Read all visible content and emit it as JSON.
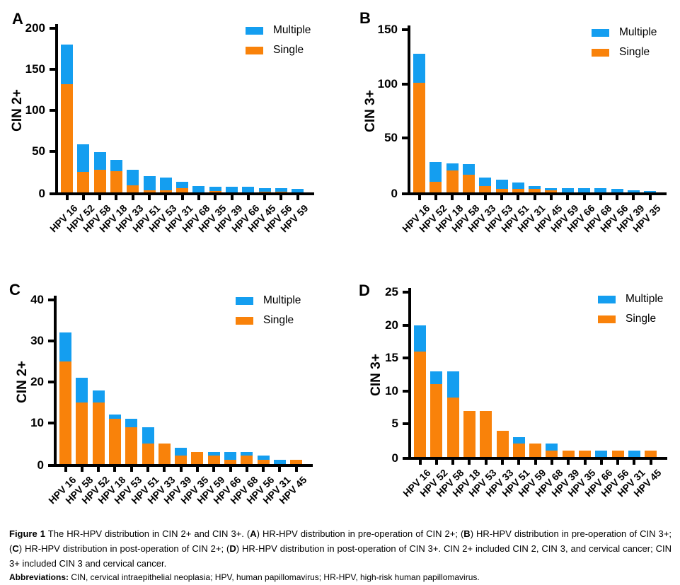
{
  "colors": {
    "multiple": "#149EF0",
    "single": "#F9820A",
    "axis": "#000000",
    "background": "#FFFFFF"
  },
  "legend": {
    "multiple": "Multiple",
    "single": "Single"
  },
  "chart_data": [
    {
      "type": "bar",
      "stacked": true,
      "panel": "A",
      "ylabel": "CIN 2+",
      "ylim": [
        0,
        200
      ],
      "yticks": [
        0,
        50,
        100,
        150,
        200
      ],
      "grid": false,
      "legend_position": "top-right",
      "legend_entries": [
        "Multiple",
        "Single"
      ],
      "categories": [
        "HPV 16",
        "HPV 52",
        "HPV 58",
        "HPV 18",
        "HPV 33",
        "HPV 51",
        "HPV 53",
        "HPV 31",
        "HPV 68",
        "HPV 35",
        "HPV 39",
        "HPV 66",
        "HPV 45",
        "HPV 56",
        "HPV 59"
      ],
      "series": [
        {
          "name": "Single",
          "values": [
            132,
            25,
            28,
            26,
            9,
            3,
            3,
            5,
            0,
            2,
            0,
            0,
            1,
            1,
            0
          ]
        },
        {
          "name": "Multiple",
          "values": [
            48,
            34,
            21,
            14,
            19,
            17,
            15,
            8,
            8,
            5,
            7,
            7,
            4,
            4,
            4
          ]
        }
      ],
      "totals": [
        180,
        59,
        49,
        40,
        28,
        20,
        18,
        13,
        8,
        7,
        7,
        7,
        5,
        5,
        4
      ]
    },
    {
      "type": "bar",
      "stacked": true,
      "panel": "B",
      "ylabel": "CIN 3+",
      "ylim": [
        0,
        150
      ],
      "yticks": [
        0,
        50,
        100,
        150
      ],
      "grid": false,
      "legend_position": "top-right",
      "legend_entries": [
        "Multiple",
        "Single"
      ],
      "categories": [
        "HPV 16",
        "HPV 52",
        "HPV 18",
        "HPV 58",
        "HPV 33",
        "HPV 53",
        "HPV 51",
        "HPV 31",
        "HPV 45",
        "HPV 59",
        "HPV 66",
        "HPV 68",
        "HPV 56",
        "HPV 39",
        "HPV 35"
      ],
      "series": [
        {
          "name": "Single",
          "values": [
            101,
            10,
            20,
            16,
            6,
            3,
            3,
            3,
            2,
            0,
            0,
            0,
            0,
            0,
            0
          ]
        },
        {
          "name": "Multiple",
          "values": [
            27,
            18,
            7,
            10,
            8,
            9,
            6,
            3,
            2,
            4,
            4,
            4,
            3,
            2,
            1
          ]
        }
      ],
      "totals": [
        128,
        28,
        27,
        26,
        14,
        12,
        9,
        6,
        4,
        4,
        4,
        4,
        3,
        2,
        1
      ]
    },
    {
      "type": "bar",
      "stacked": true,
      "panel": "C",
      "ylabel": "CIN 2+",
      "ylim": [
        0,
        40
      ],
      "yticks": [
        0,
        10,
        20,
        30,
        40
      ],
      "grid": false,
      "legend_position": "top-right",
      "legend_entries": [
        "Multiple",
        "Single"
      ],
      "categories": [
        "HPV 16",
        "HPV 58",
        "HPV 52",
        "HPV 18",
        "HPV 53",
        "HPV 51",
        "HPV 33",
        "HPV 39",
        "HPV 35",
        "HPV 59",
        "HPV 66",
        "HPV 68",
        "HPV 56",
        "HPV 31",
        "HPV 45"
      ],
      "series": [
        {
          "name": "Single",
          "values": [
            25,
            15,
            15,
            11,
            9,
            5,
            5,
            2,
            3,
            2,
            1,
            2,
            1,
            0,
            1
          ]
        },
        {
          "name": "Multiple",
          "values": [
            7,
            6,
            3,
            1,
            2,
            4,
            0,
            2,
            0,
            1,
            2,
            1,
            1,
            1,
            0
          ]
        }
      ],
      "totals": [
        32,
        21,
        18,
        12,
        11,
        9,
        5,
        4,
        3,
        3,
        3,
        3,
        2,
        1,
        1
      ]
    },
    {
      "type": "bar",
      "stacked": true,
      "panel": "D",
      "ylabel": "CIN 3+",
      "ylim": [
        0,
        25
      ],
      "yticks": [
        0,
        5,
        10,
        15,
        20,
        25
      ],
      "grid": false,
      "legend_position": "top-right",
      "legend_entries": [
        "Multiple",
        "Single"
      ],
      "categories": [
        "HPV 16",
        "HPV 52",
        "HPV 58",
        "HPV 18",
        "HPV 53",
        "HPV 33",
        "HPV 51",
        "HPV 59",
        "HPV 68",
        "HPV 39",
        "HPV 35",
        "HPV 66",
        "HPV 56",
        "HPV 31",
        "HPV 45"
      ],
      "series": [
        {
          "name": "Single",
          "values": [
            16,
            11,
            9,
            7,
            7,
            4,
            2,
            2,
            1,
            1,
            1,
            0,
            1,
            0,
            1
          ]
        },
        {
          "name": "Multiple",
          "values": [
            4,
            2,
            4,
            0,
            0,
            0,
            1,
            0,
            1,
            0,
            0,
            1,
            0,
            1,
            0
          ]
        }
      ],
      "totals": [
        20,
        13,
        13,
        7,
        7,
        4,
        3,
        2,
        2,
        1,
        1,
        1,
        1,
        1,
        1
      ]
    }
  ],
  "caption": {
    "main_segments": [
      {
        "text": "Figure 1",
        "bold": true
      },
      {
        "text": " The HR-HPV distribution in CIN 2+ and CIN 3+. (",
        "bold": false
      },
      {
        "text": "A",
        "bold": true
      },
      {
        "text": ") HR-HPV distribution in pre-operation of CIN 2+; (",
        "bold": false
      },
      {
        "text": "B",
        "bold": true
      },
      {
        "text": ") HR-HPV distribution in pre-operation of CIN 3+; (",
        "bold": false
      },
      {
        "text": "C",
        "bold": true
      },
      {
        "text": ") HR-HPV distribution in post-operation of CIN 2+; (",
        "bold": false
      },
      {
        "text": "D",
        "bold": true
      },
      {
        "text": ") HR-HPV distribution in post-operation of CIN 3+. CIN 2+ included CIN 2, CIN 3, and cervical cancer; CIN 3+ included CIN 3 and cervical cancer.",
        "bold": false
      }
    ],
    "abbrev_segments": [
      {
        "text": "Abbreviations:",
        "bold": true
      },
      {
        "text": " CIN, cervical intraepithelial neoplasia; HPV, human papillomavirus; HR-HPV, high-risk human papillomavirus.",
        "bold": false
      }
    ]
  }
}
